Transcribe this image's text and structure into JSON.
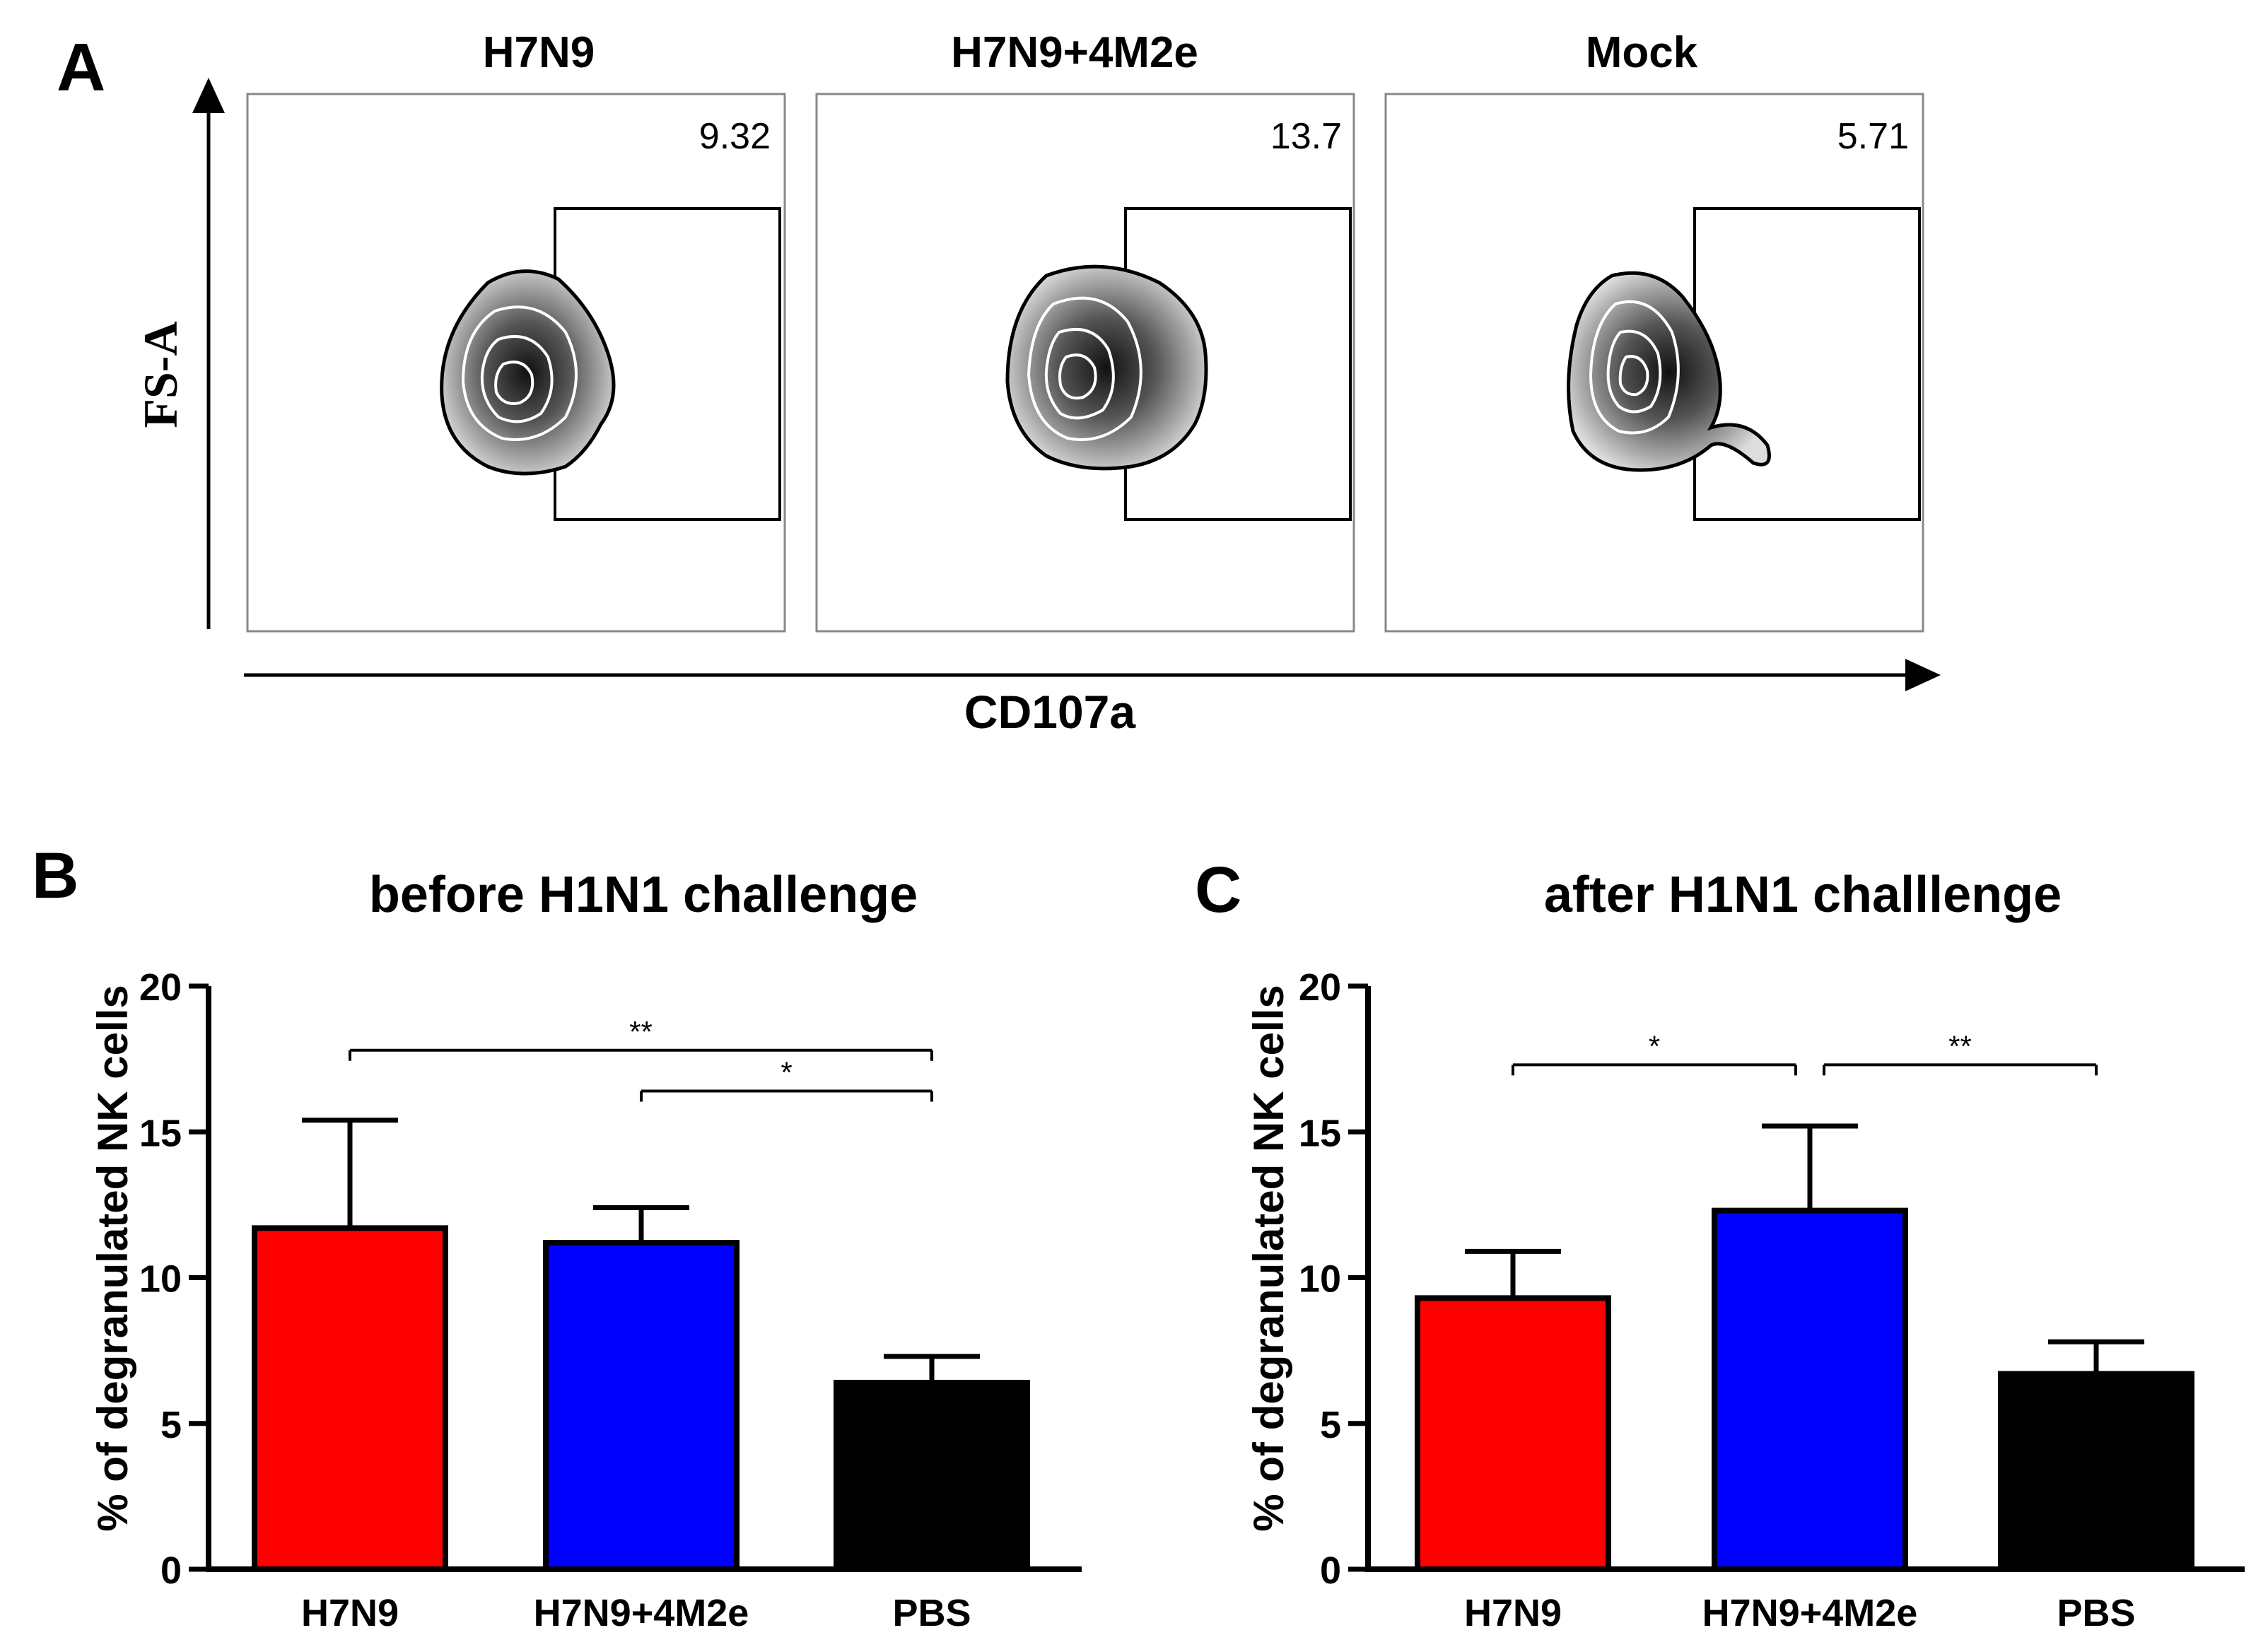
{
  "panelA": {
    "letter": "A",
    "y_axis_label": "FS-A",
    "x_axis_label": "CD107a",
    "plots": [
      {
        "title": "H7N9",
        "gate_percent": "9.32"
      },
      {
        "title": "H7N9+4M2e",
        "gate_percent": "13.7"
      },
      {
        "title": "Mock",
        "gate_percent": "5.71"
      }
    ]
  },
  "chart_data": [
    {
      "type": "bar",
      "panel": "B",
      "title": "before H1N1 challenge",
      "ylabel": "% of degranulated NK cells",
      "xlabel": "",
      "ylim": [
        0,
        20
      ],
      "yticks": [
        "0",
        "5",
        "10",
        "15",
        "20"
      ],
      "categories": [
        "H7N9",
        "H7N9+4M2e",
        "PBS"
      ],
      "values": [
        11.7,
        11.2,
        6.4
      ],
      "errors": [
        3.7,
        1.2,
        0.9
      ],
      "colors": [
        "#ff0000",
        "#0000ff",
        "#000000"
      ],
      "significance": [
        {
          "from": 0,
          "to": 2,
          "label": "**",
          "y": 17.8
        },
        {
          "from": 1,
          "to": 2,
          "label": "*",
          "y": 16.4
        }
      ]
    },
    {
      "type": "bar",
      "panel": "C",
      "title": "after H1N1 challlenge",
      "ylabel": "% of degranulated NK cells",
      "xlabel": "",
      "ylim": [
        0,
        20
      ],
      "yticks": [
        "0",
        "5",
        "10",
        "15",
        "20"
      ],
      "categories": [
        "H7N9",
        "H7N9+4M2e",
        "PBS"
      ],
      "values": [
        9.3,
        12.3,
        6.7
      ],
      "errors": [
        1.6,
        2.9,
        1.1
      ],
      "colors": [
        "#ff0000",
        "#0000ff",
        "#000000"
      ],
      "significance": [
        {
          "from": 0,
          "to": 1,
          "label": "*",
          "y": 17.3
        },
        {
          "from": 1,
          "to": 2,
          "label": "**",
          "y": 17.3
        }
      ]
    }
  ]
}
